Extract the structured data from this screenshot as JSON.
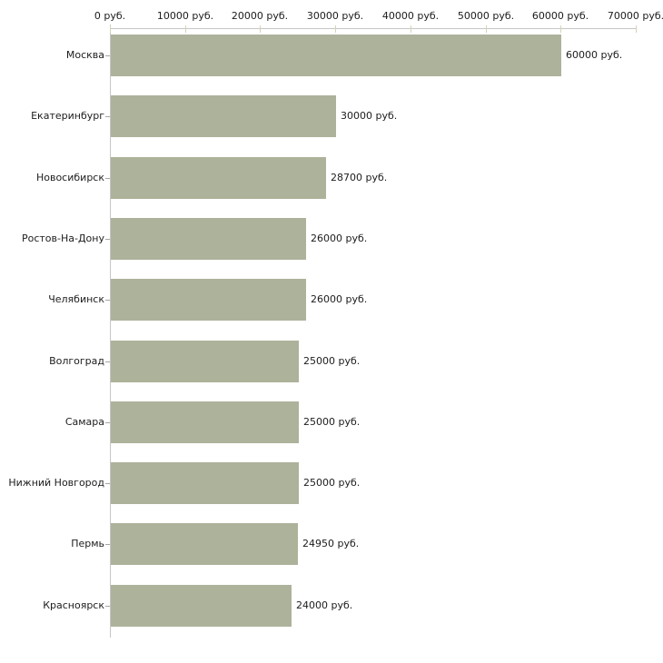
{
  "chart_data": {
    "type": "bar",
    "orientation": "horizontal",
    "title": "",
    "categories": [
      "Москва",
      "Екатеринбург",
      "Новосибирск",
      "Ростов-На-Дону",
      "Челябинск",
      "Волгоград",
      "Самара",
      "Нижний Новгород",
      "Пермь",
      "Красноярск"
    ],
    "values": [
      60000,
      30000,
      28700,
      26000,
      26000,
      25000,
      25000,
      25000,
      24950,
      24000
    ],
    "value_labels": [
      "60000 руб.",
      "30000 руб.",
      "28700 руб.",
      "26000 руб.",
      "26000 руб.",
      "25000 руб.",
      "25000 руб.",
      "25000 руб.",
      "24950 руб.",
      "24000 руб."
    ],
    "x_ticks": [
      0,
      10000,
      20000,
      30000,
      40000,
      50000,
      60000,
      70000
    ],
    "x_tick_labels": [
      "0 руб.",
      "10000 руб.",
      "20000 руб.",
      "30000 руб.",
      "40000 руб.",
      "50000 руб.",
      "60000 руб.",
      "70000 руб."
    ],
    "xlim": [
      0,
      70000
    ],
    "unit": "руб.",
    "xlabel": "",
    "ylabel": "",
    "grid": false,
    "legend_position": "none",
    "colors": {
      "bar": "#adb29b",
      "axis": "#c6c6c6",
      "axis_tick": "#d4d4b6",
      "category_tick": "#a6a6a0",
      "text": "#1c1c1c",
      "background": "#ffffff"
    }
  }
}
